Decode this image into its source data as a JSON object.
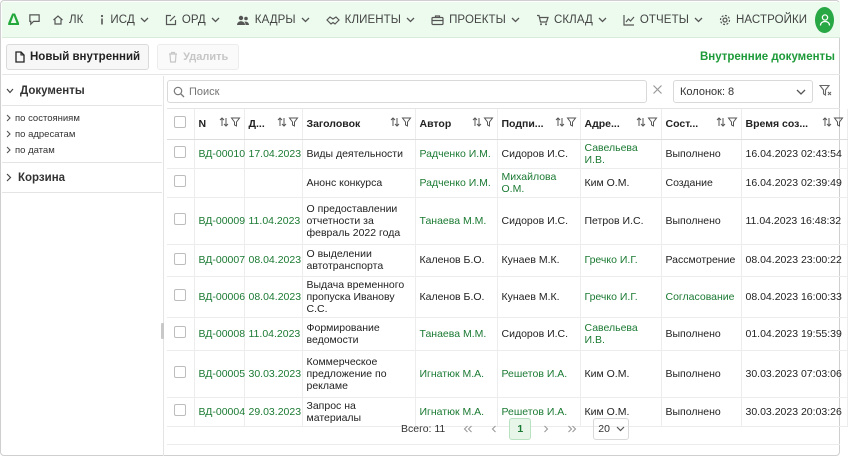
{
  "nav": {
    "logo": "Δ",
    "items": [
      {
        "label": "ЛК",
        "icon": "home-icon"
      },
      {
        "label": "ИСД",
        "icon": "info-icon"
      },
      {
        "label": "ОРД",
        "icon": "edit-doc-icon"
      },
      {
        "label": "КАДРЫ",
        "icon": "users-icon"
      },
      {
        "label": "КЛИЕНТЫ",
        "icon": "handshake-icon"
      },
      {
        "label": "ПРОЕКТЫ",
        "icon": "briefcase-icon"
      },
      {
        "label": "СКЛАД",
        "icon": "cart-icon"
      },
      {
        "label": "ОТЧЕТЫ",
        "icon": "chart-icon"
      },
      {
        "label": "НАСТРОЙКИ",
        "icon": "gear-icon"
      }
    ]
  },
  "toolbar": {
    "new_label": "Новый внутренний",
    "delete_label": "Удалить",
    "title": "Внутренние документы"
  },
  "sidebar": {
    "documents_label": "Документы",
    "sub_items": [
      "по состояниям",
      "по адресатам",
      "по датам"
    ],
    "trash_label": "Корзина"
  },
  "filter": {
    "search_placeholder": "Поиск",
    "columns_label": "Колонок: 8"
  },
  "table": {
    "headers": [
      "N",
      "Д...",
      "Заголовок",
      "Автор",
      "Подпи...",
      "Адре...",
      "Сост...",
      "Время соз..."
    ],
    "rows": [
      {
        "n": "ВД-00010",
        "date": "17.04.2023",
        "title": "Виды деятельности",
        "author": "Радченко И.М.",
        "signer": "Сидоров И.С.",
        "addressee": "Савельева И.В.",
        "state": "Выполнено",
        "created": "16.04.2023 02:43:54"
      },
      {
        "n": "",
        "date": "",
        "title": "Анонс конкурса",
        "author": "Радченко И.М.",
        "signer": "Михайлова О.М.",
        "addressee": "Ким О.М.",
        "state": "Создание",
        "created": "16.04.2023 02:39:49"
      },
      {
        "n": "ВД-00009",
        "date": "11.04.2023",
        "title": "О предоставлении отчетности за февраль 2022 года",
        "author": "Танаева М.М.",
        "signer": "Сидоров И.С.",
        "addressee": "Петров И.С.",
        "state": "Выполнено",
        "created": "11.04.2023 16:48:32"
      },
      {
        "n": "ВД-00007",
        "date": "08.04.2023",
        "title": "О выделении автотранспорта",
        "author": "Каленов Б.О.",
        "signer": "Кунаев М.К.",
        "addressee": "Гречко И.Г.",
        "state": "Рассмотрение",
        "created": "08.04.2023 23:00:22"
      },
      {
        "n": "ВД-00006",
        "date": "08.04.2023",
        "title": "Выдача временного пропуска Иванову С.С.",
        "author": "Каленов Б.О.",
        "signer": "Кунаев М.К.",
        "addressee": "Гречко И.Г.",
        "state": "Согласование",
        "created": "08.04.2023 16:00:33"
      },
      {
        "n": "ВД-00008",
        "date": "11.04.2023",
        "title": "Формирование ведомости",
        "author": "Танаева М.М.",
        "signer": "Сидоров И.С.",
        "addressee": "Савельева И.В.",
        "state": "Выполнено",
        "created": "01.04.2023 19:55:39"
      },
      {
        "n": "ВД-00005",
        "date": "30.03.2023",
        "title": "Коммерческое предложение по рекламе",
        "author": "Игнатюк М.А.",
        "signer": "Решетов И.А.",
        "addressee": "Ким О.М.",
        "state": "Выполнено",
        "created": "30.03.2023 07:03:06"
      },
      {
        "n": "ВД-00004",
        "date": "29.03.2023",
        "title": "Запрос на материалы",
        "author": "Игнатюк М.А.",
        "signer": "Решетов И.А.",
        "addressee": "Ким О.М.",
        "state": "Выполнено",
        "created": "30.03.2023 20:03:26"
      }
    ]
  },
  "pager": {
    "total": "Всего: 11",
    "current": "1",
    "page_size": "20"
  }
}
